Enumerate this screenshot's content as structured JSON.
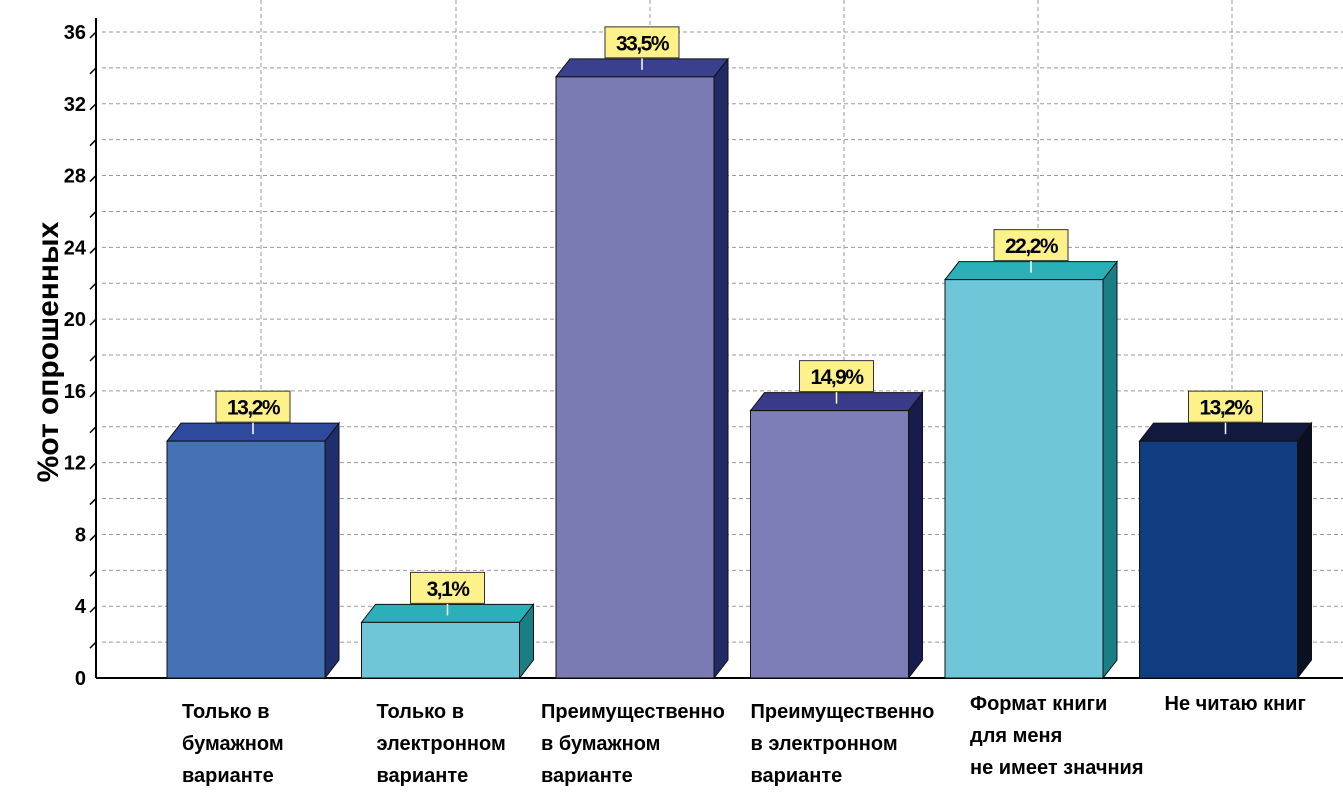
{
  "chart_data": {
    "type": "bar",
    "ylabel": "%от опрошенных",
    "ylim": [
      0,
      36
    ],
    "y_ticks": [
      0,
      4,
      8,
      12,
      16,
      20,
      24,
      28,
      32,
      36
    ],
    "y_tick_labels": [
      "0",
      "4",
      "8",
      "12",
      "16",
      "20",
      "24",
      "28",
      "32",
      "36"
    ],
    "grid": true,
    "categories": [
      [
        "Только в",
        "бумажном",
        "варианте"
      ],
      [
        "Только в",
        "электронном",
        "варианте"
      ],
      [
        "Преимущественно",
        "в бумажном",
        "варианте"
      ],
      [
        "Преимущественно",
        "в электронном",
        "варианте"
      ],
      [
        "Формат книги",
        "для меня",
        "не имеет значния"
      ],
      [
        "Не читаю книг"
      ]
    ],
    "values": [
      13.2,
      3.1,
      33.5,
      14.9,
      22.2,
      13.2
    ],
    "data_labels": [
      "13,2%",
      "3,1%",
      "33,5%",
      "14,9%",
      "22,2%",
      "13,2%"
    ],
    "colors": [
      {
        "front": "#4572b4",
        "top": "#2e4a9c",
        "side": "#1f2f6e"
      },
      {
        "front": "#6fc6d9",
        "top": "#2ab0b8",
        "side": "#1a7f85"
      },
      {
        "front": "#7b7bb4",
        "top": "#3a3f8e",
        "side": "#222a63"
      },
      {
        "front": "#7d7db8",
        "top": "#3a3a8a",
        "side": "#181c4c"
      },
      {
        "front": "#6fc6d9",
        "top": "#2ab0b8",
        "side": "#1a7f85"
      },
      {
        "front": "#103d80",
        "top": "#121a40",
        "side": "#0b0f22"
      }
    ],
    "label_box_color": "#fdf28a"
  }
}
